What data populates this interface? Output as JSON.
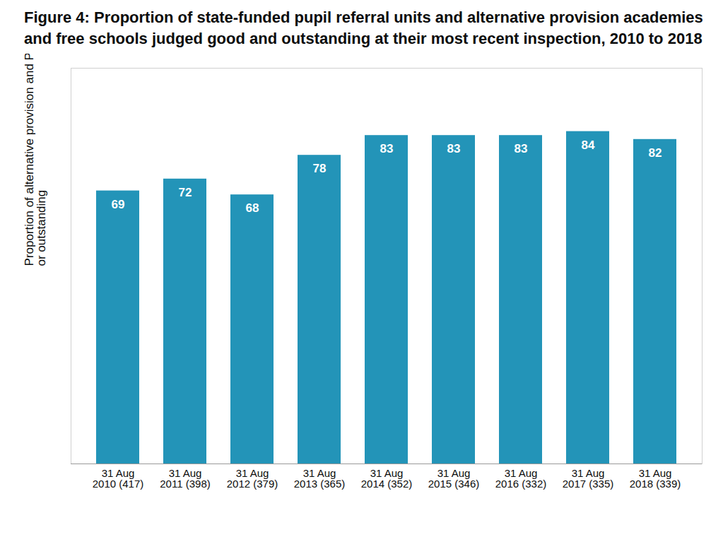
{
  "chart_data": {
    "type": "bar",
    "title": "Figure 4: Proportion of state-funded pupil referral units and alternative provision academies and free schools judged good and outstanding at their most recent inspection, 2010 to 2018",
    "y_label": "Proportion of alternative provision and PRUs judged good or outstanding",
    "categories": [
      "31 Aug\n2010 (417)",
      "31 Aug\n2011 (398)",
      "31 Aug\n2012 (379)",
      "31 Aug\n2013 (365)",
      "31 Aug\n2014 (352)",
      "31 Aug\n2015 (346)",
      "31 Aug\n2016 (332)",
      "31 Aug\n2017 (335)",
      "31 Aug\n2018 (339)"
    ],
    "values": [
      69,
      72,
      68,
      78,
      83,
      83,
      83,
      84,
      82
    ],
    "color": "#2394b8",
    "ylim": [
      0,
      100
    ],
    "yticks": [],
    "grid": false,
    "data_labels": true,
    "tick_labels": "x"
  }
}
